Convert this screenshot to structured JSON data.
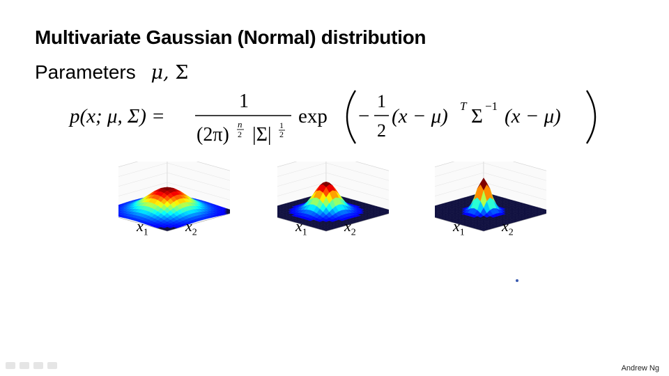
{
  "slide": {
    "title": "Multivariate Gaussian (Normal) distribution",
    "params_label": "Parameters",
    "params_mu": "μ,",
    "params_sigma": "Σ",
    "author": "Andrew Ng"
  },
  "formula": {
    "lhs": "p(x; μ, Σ) =",
    "numerator": "1",
    "denominator_base": "(2π)",
    "exp_n": "n",
    "exp_2": "2",
    "sigma_abs": "|Σ|",
    "exp_half_num": "1",
    "exp_half_den": "2",
    "exp_word": "exp",
    "neg_half_num": "1",
    "neg_half_den": "2",
    "minus": "−",
    "term1": "(x − μ)",
    "T": "T",
    "sigma_inv": "Σ",
    "inv_exp": "−1",
    "term2": "(x − μ)"
  },
  "plots": [
    {
      "x1": "x",
      "x2": "x",
      "sub1": "1",
      "sub2": "2",
      "spread": 1.0
    },
    {
      "x1": "x",
      "x2": "x",
      "sub1": "1",
      "sub2": "2",
      "spread": 0.6
    },
    {
      "x1": "x",
      "x2": "x",
      "sub1": "1",
      "sub2": "2",
      "spread": 0.35
    }
  ]
}
